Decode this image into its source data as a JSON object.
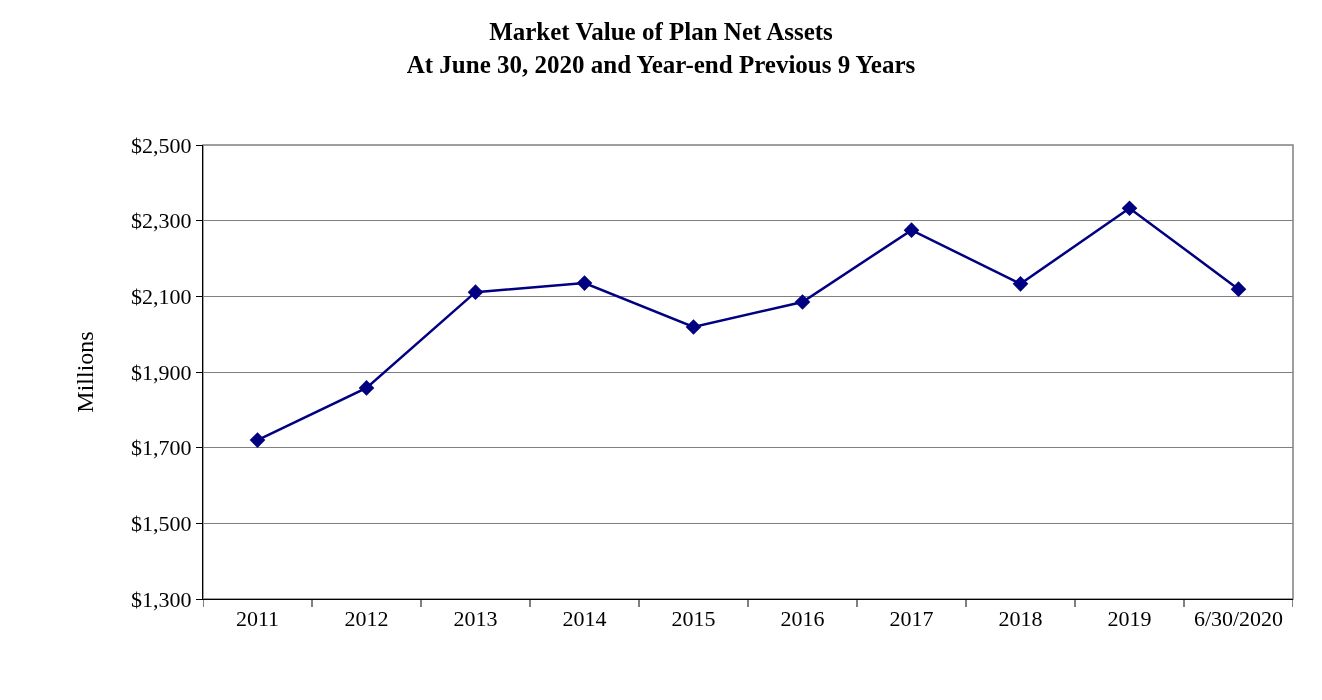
{
  "chart_data": {
    "type": "line",
    "title": "Market Value of Plan Net Assets\nAt June 30, 2020 and Year-end Previous 9 Years",
    "ylabel": "Millions",
    "categories": [
      "2011",
      "2012",
      "2013",
      "2014",
      "2015",
      "2016",
      "2017",
      "2018",
      "2019",
      "6/30/2020"
    ],
    "series": [
      {
        "color": "#000080",
        "values": [
          1720,
          1858,
          2111,
          2135,
          2019,
          2085,
          2275,
          2133,
          2333,
          2119
        ]
      }
    ],
    "ylim": [
      1300,
      2500
    ],
    "yticks": [
      {
        "value": 1300,
        "label": "$1,300"
      },
      {
        "value": 1500,
        "label": "$1,500"
      },
      {
        "value": 1700,
        "label": "$1,700"
      },
      {
        "value": 1900,
        "label": "$1,900"
      },
      {
        "value": 2100,
        "label": "$2,100"
      },
      {
        "value": 2300,
        "label": "$2,300"
      },
      {
        "value": 2500,
        "label": "$2,500"
      }
    ],
    "grid": "y",
    "marker": "diamond",
    "line_style": "solid"
  }
}
